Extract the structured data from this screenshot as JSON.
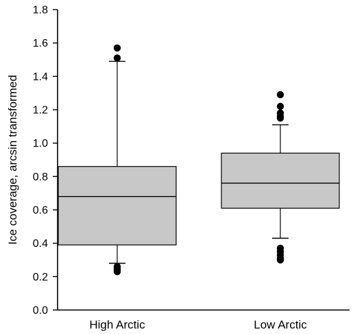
{
  "chart_data": {
    "type": "boxplot",
    "title": "",
    "xlabel": "",
    "ylabel": "Ice coverage, arcsin transformed",
    "ylim": [
      0.0,
      1.8
    ],
    "yticks": [
      "0.0",
      "0.2",
      "0.4",
      "0.6",
      "0.8",
      "1.0",
      "1.2",
      "1.4",
      "1.6",
      "1.8"
    ],
    "grid": false,
    "legend": "none",
    "box_color": "#c8c8c8",
    "categories": [
      "High Arctic",
      "Low Arctic"
    ],
    "boxes": [
      {
        "category": "High Arctic",
        "whisker_low": 0.28,
        "q1": 0.39,
        "median": 0.68,
        "q3": 0.86,
        "whisker_high": 1.49,
        "outliers": [
          0.23,
          0.24,
          0.25,
          0.26,
          1.51,
          1.57
        ]
      },
      {
        "category": "Low Arctic",
        "whisker_low": 0.43,
        "q1": 0.61,
        "median": 0.76,
        "q3": 0.94,
        "whisker_high": 1.11,
        "outliers": [
          0.3,
          0.31,
          0.33,
          0.35,
          0.37,
          1.15,
          1.16,
          1.18,
          1.22,
          1.29
        ]
      }
    ]
  }
}
